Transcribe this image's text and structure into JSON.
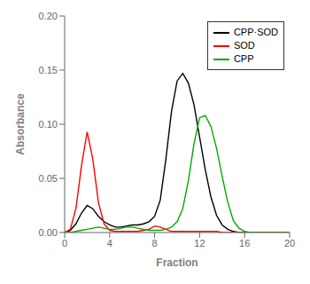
{
  "chart_data": {
    "type": "line",
    "title": "",
    "xlabel": "Fraction",
    "ylabel": "Absorbance",
    "x": [
      0,
      0.5,
      1.0,
      1.5,
      2.0,
      2.5,
      3.0,
      3.5,
      4.0,
      4.5,
      5.0,
      5.5,
      6.0,
      6.5,
      7.0,
      7.5,
      8.0,
      8.5,
      9.0,
      9.5,
      10.0,
      10.5,
      11.0,
      11.5,
      12.0,
      12.5,
      13.0,
      13.5,
      14.0,
      14.5,
      15.0,
      15.5,
      16.0,
      16.5,
      17.0,
      17.5,
      18.0,
      18.5,
      19.0,
      19.5,
      20.0
    ],
    "series": [
      {
        "name": "CPP·SOD",
        "color": "#000000",
        "values": [
          0.0,
          0.002,
          0.008,
          0.018,
          0.025,
          0.022,
          0.015,
          0.01,
          0.007,
          0.005,
          0.005,
          0.006,
          0.007,
          0.007,
          0.008,
          0.01,
          0.015,
          0.03,
          0.068,
          0.112,
          0.14,
          0.147,
          0.138,
          0.118,
          0.088,
          0.058,
          0.033,
          0.016,
          0.007,
          0.003,
          0.001,
          0.0,
          0.0,
          0.0,
          0.0,
          0.0,
          0.0,
          0.0,
          0.0,
          0.0,
          0.0
        ]
      },
      {
        "name": "SOD",
        "color": "#ff0000",
        "values": [
          0.0,
          0.003,
          0.022,
          0.062,
          0.093,
          0.068,
          0.028,
          0.008,
          0.002,
          0.001,
          0.001,
          0.001,
          0.001,
          0.001,
          0.002,
          0.003,
          0.006,
          0.005,
          0.003,
          0.001,
          0.001,
          0.001,
          0.001,
          0.001,
          0.001,
          0.001,
          0.001,
          0.001,
          0.0,
          0.0,
          0.0,
          0.0,
          0.0,
          0.0,
          0.0,
          0.0,
          0.0,
          0.0,
          0.0,
          0.0,
          0.0
        ]
      },
      {
        "name": "CPP",
        "color": "#00aa00",
        "values": [
          0.0,
          0.0,
          0.001,
          0.002,
          0.003,
          0.004,
          0.005,
          0.004,
          0.003,
          0.003,
          0.004,
          0.005,
          0.005,
          0.004,
          0.003,
          0.002,
          0.002,
          0.002,
          0.003,
          0.005,
          0.01,
          0.022,
          0.048,
          0.082,
          0.106,
          0.108,
          0.098,
          0.078,
          0.052,
          0.028,
          0.011,
          0.004,
          0.001,
          0.0,
          0.0,
          0.0,
          0.0,
          0.0,
          0.0,
          0.0,
          0.0
        ]
      }
    ],
    "xlim": [
      0,
      20
    ],
    "xticks": [
      0,
      4,
      8,
      12,
      16,
      20
    ],
    "ylim": [
      0.0,
      0.2
    ],
    "yticks": [
      {
        "value": 0.0,
        "label": "0.00"
      },
      {
        "value": 0.05,
        "label": "0.05"
      },
      {
        "value": 0.1,
        "label": "0.10"
      },
      {
        "value": 0.15,
        "label": "0.15"
      },
      {
        "value": 0.2,
        "label": "0.20"
      }
    ],
    "grid": false,
    "legend": "upper right"
  }
}
